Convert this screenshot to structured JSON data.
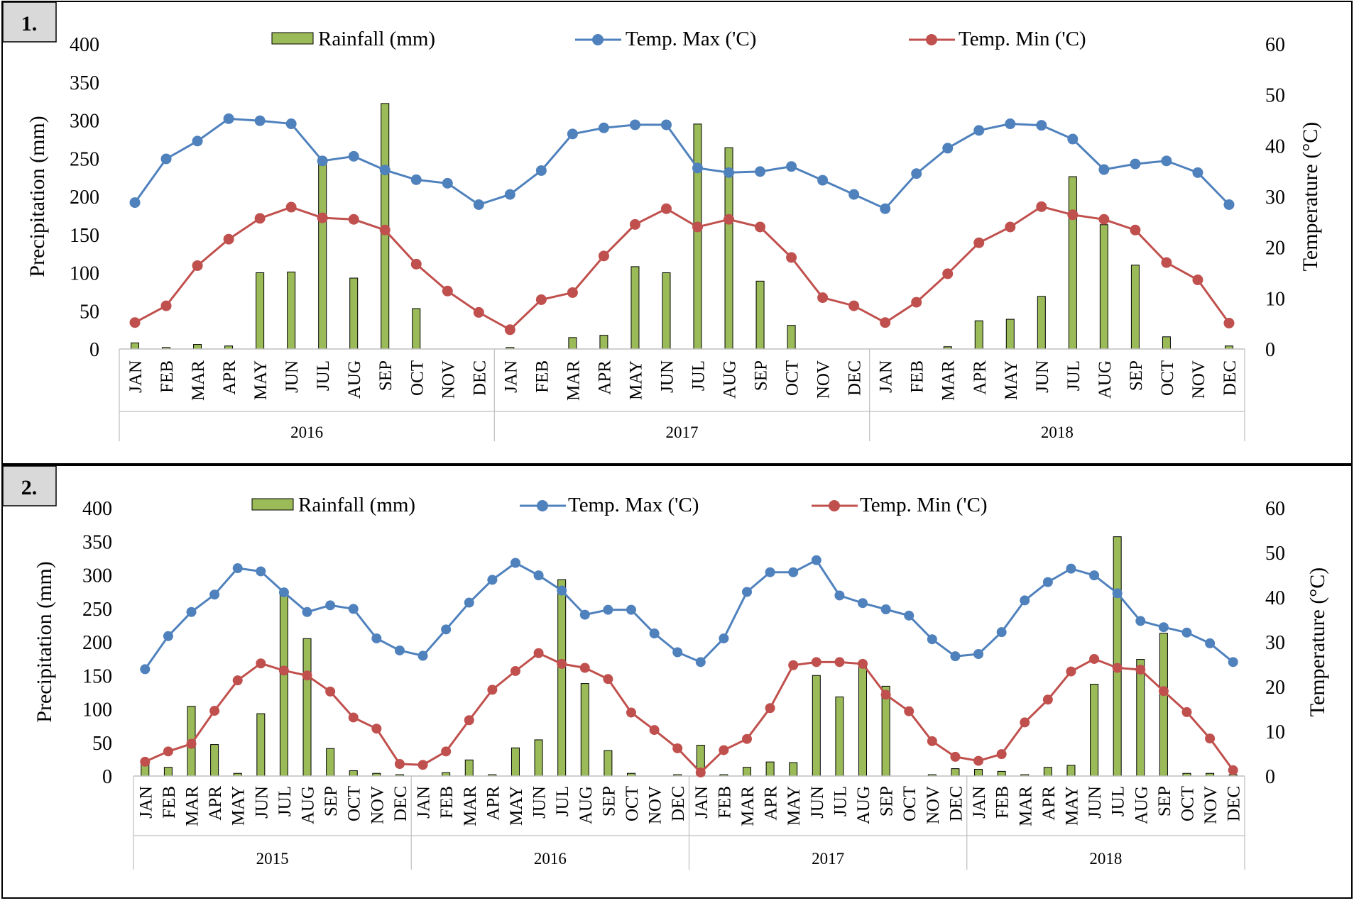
{
  "legend": {
    "rainfall": "Rainfall (mm)",
    "tmax": "Temp. Max ('C)",
    "tmin": "Temp. Min ('C)"
  },
  "colors": {
    "bar_fill": "#9bbb59",
    "bar_stroke": "#000000",
    "tmax": "#4f81bd",
    "tmin": "#c0504d",
    "axis": "#000000",
    "grid": "#bfbfbf",
    "label_box": "#d9d9d9"
  },
  "chart_data": [
    {
      "type": "bar+line",
      "panel_label": "1.",
      "ylabel": "Precipitation (mm)",
      "y2label": "Temperature (°C)",
      "ylim": [
        0,
        400
      ],
      "y2lim": [
        0,
        60
      ],
      "yticks": [
        "0",
        "50",
        "100",
        "150",
        "200",
        "250",
        "300",
        "350",
        "400"
      ],
      "y2ticks": [
        "0",
        "10",
        "20",
        "30",
        "40",
        "50",
        "60"
      ],
      "months": [
        "JAN",
        "FEB",
        "MAR",
        "APR",
        "MAY",
        "JUN",
        "JUL",
        "AUG",
        "SEP",
        "OCT",
        "NOV",
        "DEC"
      ],
      "years": [
        "2016",
        "2017",
        "2018"
      ],
      "series": [
        {
          "name": "Rainfall (mm)",
          "axis": "left",
          "kind": "bar",
          "values": [
            8,
            2,
            6,
            4,
            100,
            101,
            245,
            93,
            322,
            53,
            0,
            0,
            2,
            0,
            15,
            18,
            108,
            100,
            295,
            264,
            89,
            31,
            0,
            0,
            0,
            0,
            3,
            37,
            39,
            69,
            226,
            163,
            110,
            16,
            0,
            4
          ]
        },
        {
          "name": "Temp. Max ('C)",
          "axis": "right",
          "kind": "line",
          "values": [
            28.8,
            37.4,
            40.9,
            45.3,
            44.9,
            44.3,
            37.0,
            37.9,
            35.2,
            33.3,
            32.6,
            28.4,
            30.4,
            35.1,
            42.3,
            43.5,
            44.1,
            44.1,
            35.6,
            34.7,
            34.9,
            35.9,
            33.2,
            30.4,
            27.6,
            34.5,
            39.5,
            43.0,
            44.3,
            44.0,
            41.3,
            35.3,
            36.4,
            37.0,
            34.7,
            28.4
          ]
        },
        {
          "name": "Temp. Min ('C)",
          "axis": "right",
          "kind": "line",
          "values": [
            5.2,
            8.5,
            16.4,
            21.6,
            25.7,
            27.9,
            25.8,
            25.5,
            23.4,
            16.7,
            11.4,
            7.2,
            3.8,
            9.7,
            11.1,
            18.3,
            24.5,
            27.6,
            24.0,
            25.5,
            24.0,
            18.0,
            10.1,
            8.5,
            5.2,
            9.2,
            14.8,
            20.9,
            24.0,
            28.0,
            26.4,
            25.5,
            23.4,
            17.0,
            13.6,
            5.1
          ]
        }
      ]
    },
    {
      "type": "bar+line",
      "panel_label": "2.",
      "ylabel": "Precipitation (mm)",
      "y2label": "Temperature (°C)",
      "ylim": [
        0,
        400
      ],
      "y2lim": [
        0,
        60
      ],
      "yticks": [
        "0",
        "50",
        "100",
        "150",
        "200",
        "250",
        "300",
        "350",
        "400"
      ],
      "y2ticks": [
        "0",
        "10",
        "20",
        "30",
        "40",
        "50",
        "60"
      ],
      "months": [
        "JAN",
        "FEB",
        "MAR",
        "APR",
        "MAY",
        "JUN",
        "JUL",
        "AUG",
        "SEP",
        "OCT",
        "NOV",
        "DEC"
      ],
      "years": [
        "2015",
        "2016",
        "2017",
        "2018"
      ],
      "series": [
        {
          "name": "Rainfall (mm)",
          "axis": "left",
          "kind": "bar",
          "values": [
            18,
            13,
            104,
            47,
            4,
            93,
            272,
            205,
            41,
            8,
            4,
            2,
            0,
            5,
            24,
            2,
            42,
            54,
            293,
            138,
            38,
            4,
            0,
            2,
            46,
            2,
            13,
            21,
            20,
            150,
            118,
            165,
            134,
            0,
            2,
            11,
            10,
            7,
            2,
            13,
            16,
            137,
            357,
            174,
            213,
            4,
            4,
            2
          ]
        },
        {
          "name": "Temp. Max ('C)",
          "axis": "right",
          "kind": "line",
          "values": [
            23.9,
            31.3,
            36.7,
            40.6,
            46.5,
            45.8,
            41.1,
            36.7,
            38.2,
            37.4,
            30.8,
            28.1,
            26.9,
            32.8,
            38.8,
            43.9,
            47.7,
            44.9,
            41.5,
            36.1,
            37.2,
            37.2,
            31.9,
            27.7,
            25.5,
            30.8,
            41.2,
            45.6,
            45.6,
            48.3,
            40.4,
            38.7,
            37.3,
            35.9,
            30.6,
            26.8,
            27.3,
            32.2,
            39.3,
            43.4,
            46.4,
            44.9,
            40.9,
            34.7,
            33.3,
            32.1,
            29.7,
            25.5
          ]
        },
        {
          "name": "Temp. Min ('C)",
          "axis": "right",
          "kind": "line",
          "values": [
            3.2,
            5.5,
            7.2,
            14.6,
            21.4,
            25.2,
            23.6,
            22.5,
            18.9,
            13.1,
            10.6,
            2.7,
            2.5,
            5.5,
            12.5,
            19.3,
            23.5,
            27.5,
            25.1,
            24.2,
            21.7,
            14.2,
            10.3,
            6.2,
            0.8,
            5.8,
            8.3,
            15.2,
            24.8,
            25.5,
            25.5,
            25.1,
            18.2,
            14.5,
            7.8,
            4.3,
            3.4,
            4.9,
            12.0,
            17.1,
            23.4,
            26.2,
            24.2,
            23.8,
            19.0,
            14.3,
            8.4,
            1.3
          ]
        }
      ]
    }
  ]
}
